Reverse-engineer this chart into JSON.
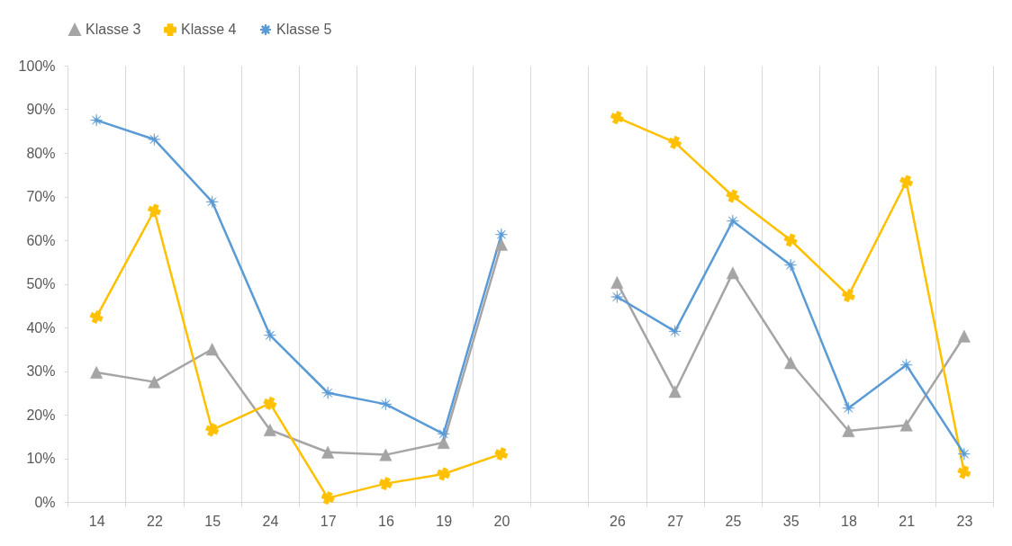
{
  "chart_data": {
    "type": "line",
    "categories": [
      "14",
      "22",
      "15",
      "24",
      "17",
      "16",
      "19",
      "20",
      null,
      "26",
      "27",
      "25",
      "35",
      "18",
      "21",
      "23"
    ],
    "series": [
      {
        "name": "Klasse 3",
        "color": "#a5a5a5",
        "marker": "triangle",
        "values": [
          29.7,
          27.5,
          35,
          16.5,
          11.4,
          10.8,
          13.6,
          59,
          null,
          50.3,
          25.3,
          52.5,
          31.9,
          16.3,
          17.6,
          38
        ]
      },
      {
        "name": "Klasse 4",
        "color": "#ffc000",
        "marker": "cross",
        "values": [
          42.4,
          66.8,
          16.5,
          22.6,
          0.9,
          4.2,
          6.4,
          11,
          null,
          88.1,
          82.4,
          70.1,
          60,
          47.3,
          73.4,
          6.8
        ]
      },
      {
        "name": "Klasse 5",
        "color": "#5b9bd5",
        "marker": "star",
        "values": [
          87.5,
          83.1,
          68.8,
          38.2,
          25,
          22.4,
          15.6,
          61.3,
          null,
          47,
          39.1,
          64.4,
          54.3,
          21.5,
          31.4,
          11
        ]
      }
    ],
    "ylim": [
      0,
      100
    ],
    "yticks": [
      {
        "value": 0,
        "label": "0%"
      },
      {
        "value": 10,
        "label": "10%"
      },
      {
        "value": 20,
        "label": "20%"
      },
      {
        "value": 30,
        "label": "30%"
      },
      {
        "value": 40,
        "label": "40%"
      },
      {
        "value": 50,
        "label": "50%"
      },
      {
        "value": 60,
        "label": "60%"
      },
      {
        "value": 70,
        "label": "70%"
      },
      {
        "value": 80,
        "label": "80%"
      },
      {
        "value": 90,
        "label": "90%"
      },
      {
        "value": 100,
        "label": "100%"
      }
    ],
    "grid": "x",
    "legend": "top",
    "line_style": "solid"
  }
}
